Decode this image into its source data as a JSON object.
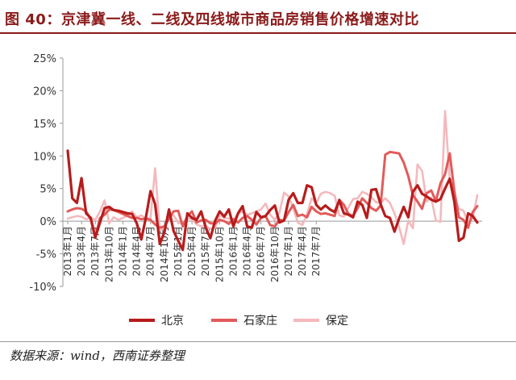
{
  "header": {
    "title": "图 40：京津冀一线、二线及四线城市商品房销售价格增速对比"
  },
  "footer": {
    "source_label": "数据来源：",
    "source_value": "wind，西南证券整理"
  },
  "colors": {
    "title": "#8b1a1a",
    "beijing": "#b71c1c",
    "shijiazhuang": "#e35a5a",
    "baoding": "#f4b9bd",
    "axis": "#999999"
  },
  "chart_data": {
    "type": "line",
    "title": "",
    "xlabel": "",
    "ylabel": "",
    "ylim": [
      -10,
      25
    ],
    "yticks": [
      -10,
      -5,
      0,
      5,
      10,
      15,
      20,
      25
    ],
    "ytick_labels": [
      "-10%",
      "-5%",
      "0%",
      "5%",
      "10%",
      "15%",
      "20%",
      "25%"
    ],
    "x_ticks": [
      "2013年1月",
      "2013年4月",
      "2013年7月",
      "2013年10月",
      "2014年1月",
      "2014年4月",
      "2014年7月",
      "2014年10月",
      "2015年1月",
      "2015年4月",
      "2015年7月",
      "2015年10月",
      "2016年1月",
      "2016年4月",
      "2016年7月",
      "2016年10月",
      "2017年1月",
      "2017年4月",
      "2017年7月"
    ],
    "grid": false,
    "legend_position": "bottom",
    "x_start": "2013-01",
    "x_end": "2017-07",
    "series": [
      {
        "name": "北京",
        "color_key": "beijing",
        "values": [
          10.8,
          3.5,
          2.8,
          6.6,
          1.2,
          0.5,
          -2.5,
          -0.2,
          2.0,
          2.2,
          1.7,
          1.6,
          1.4,
          1.2,
          1.1,
          -0.3,
          -2.8,
          0.6,
          4.6,
          2.6,
          -3.5,
          -1.7,
          1.8,
          -1.5,
          -3.0,
          -4.4,
          1.2,
          0.5,
          0.2,
          1.5,
          -1.0,
          -2.6,
          0.0,
          1.5,
          0.7,
          1.8,
          -0.8,
          1.2,
          2.3,
          -0.8,
          -1.0,
          1.4,
          0.6,
          0.8,
          1.7,
          2.4,
          -0.2,
          0.1,
          3.3,
          4.3,
          2.8,
          2.8,
          5.5,
          5.2,
          2.5,
          1.8,
          2.4,
          1.8,
          1.4,
          3.2,
          1.2,
          1.0,
          0.6,
          3.0,
          2.5,
          0.5,
          4.8,
          4.9,
          2.6,
          0.8,
          0.5,
          -1.6,
          0.4,
          2.2,
          0.6,
          4.5,
          5.5,
          4.2,
          3.8,
          3.3,
          3.0,
          3.4,
          5.0,
          6.5,
          3.0,
          -3.0,
          -2.5,
          1.2,
          0.8,
          -0.2
        ]
      },
      {
        "name": "石家庄",
        "color_key": "shijiazhuang",
        "values": [
          1.5,
          1.8,
          2.0,
          1.9,
          1.5,
          0.3,
          -2.5,
          0.5,
          1.0,
          1.8,
          1.7,
          1.4,
          1.1,
          0.8,
          0.5,
          0.5,
          0.3,
          0.4,
          0.2,
          -0.5,
          -1.0,
          -0.8,
          0.4,
          1.5,
          1.6,
          -0.8,
          0.8,
          1.5,
          -0.2,
          0.1,
          0.2,
          -0.3,
          -0.4,
          0.2,
          0.0,
          -0.4,
          0.3,
          -0.2,
          0.5,
          0.8,
          0.2,
          -0.5,
          0.5,
          0.8,
          -0.6,
          -0.8,
          0.2,
          0.1,
          1.4,
          2.5,
          0.8,
          1.0,
          0.6,
          2.2,
          1.5,
          1.1,
          1.2,
          1.0,
          0.8,
          3.3,
          2.5,
          1.1,
          0.8,
          2.0,
          3.5,
          2.8,
          2.0,
          1.6,
          2.4,
          10.2,
          10.6,
          10.5,
          10.4,
          9.0,
          6.9,
          4.0,
          3.0,
          1.9,
          4.3,
          4.7,
          3.1,
          5.8,
          7.2,
          10.4,
          4.6,
          0.6,
          0.2,
          -1.0,
          1.4,
          2.3
        ]
      },
      {
        "name": "保定",
        "color_key": "baoding",
        "values": [
          0.4,
          0.6,
          0.8,
          0.7,
          0.3,
          0.5,
          0.2,
          1.5,
          3.2,
          -0.3,
          0.6,
          0.2,
          0.5,
          0.9,
          1.5,
          0.6,
          0.9,
          0.4,
          0.4,
          8.1,
          -1.4,
          -1.0,
          0.7,
          0.9,
          -0.2,
          -0.4,
          0.4,
          0.3,
          -0.5,
          -0.8,
          -0.7,
          -1.2,
          -1.0,
          0.9,
          0.5,
          0.4,
          0.2,
          1.1,
          1.5,
          1.0,
          1.2,
          1.5,
          1.8,
          2.7,
          1.0,
          0.2,
          1.3,
          4.4,
          3.8,
          2.0,
          -0.2,
          -0.6,
          1.1,
          3.5,
          2.7,
          4.2,
          4.5,
          4.3,
          3.9,
          0.9,
          0.7,
          2.1,
          3.4,
          3.5,
          4.5,
          4.2,
          3.7,
          2.9,
          2.8,
          3.5,
          2.8,
          1.2,
          -0.9,
          -3.5,
          0.1,
          -1.1,
          8.7,
          7.7,
          3.0,
          3.6,
          0.1,
          -0.1,
          16.9,
          6.4,
          3.7,
          1.9,
          1.6,
          -0.3,
          0.5,
          4.0
        ]
      }
    ]
  }
}
